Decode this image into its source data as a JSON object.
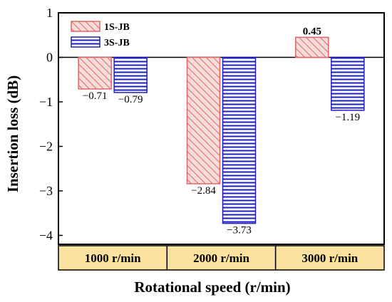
{
  "chart_data": {
    "type": "bar",
    "xlabel": "Rotational speed (r/min)",
    "ylabel": "Insertion loss (dB)",
    "ylim": [
      -4.2,
      1
    ],
    "yticks": [
      1,
      0,
      -1,
      -2,
      -3,
      -4
    ],
    "ytick_labels": [
      "1",
      "0",
      "−1",
      "−2",
      "−3",
      "−4"
    ],
    "categories": [
      "1000 r/min",
      "2000 r/min",
      "3000 r/min"
    ],
    "legend_position": "top-left",
    "grid": false,
    "series": [
      {
        "name": "1S-JB",
        "values": [
          -0.71,
          -2.84,
          0.45
        ],
        "labels": [
          "−0.71",
          "−2.84",
          "0.45"
        ],
        "color": "#e06666",
        "fill": "#f7dcdc",
        "pattern": "diagonal-hatch"
      },
      {
        "name": "3S-JB",
        "values": [
          -0.79,
          -3.73,
          -1.19
        ],
        "labels": [
          "−0.79",
          "−3.73",
          "−1.19"
        ],
        "color": "#1f1fbf",
        "fill": "#ffffff",
        "pattern": "horizontal-lines"
      }
    ],
    "category_box_color": "#fbe29e"
  }
}
